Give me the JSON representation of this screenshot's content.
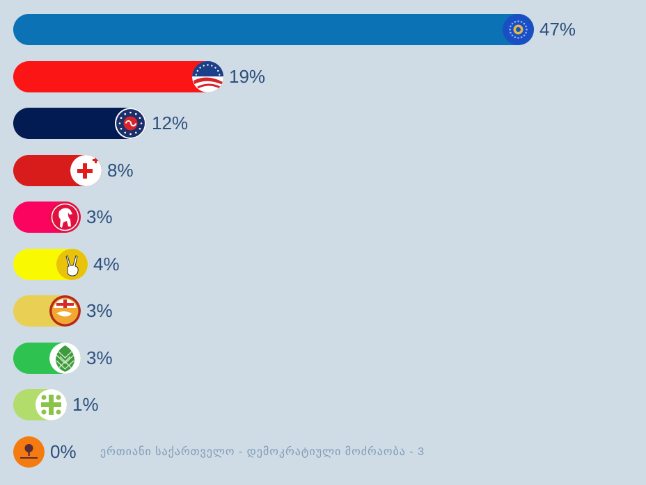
{
  "chart_data": {
    "type": "bar",
    "orientation": "horizontal",
    "title": "",
    "xlabel": "",
    "ylabel": "",
    "xlim": [
      0,
      47
    ],
    "grid": false,
    "series": [
      {
        "name": "party-1",
        "value": 47,
        "label": "47%",
        "color": "#0a72b5",
        "icon": "sunburst-emblem-icon"
      },
      {
        "name": "party-2",
        "value": 19,
        "label": "19%",
        "color": "#fb1515",
        "icon": "stars-flag-emblem-icon"
      },
      {
        "name": "party-3",
        "value": 12,
        "label": "12%",
        "color": "#021b52",
        "icon": "link-stars-emblem-icon"
      },
      {
        "name": "party-4",
        "value": 8,
        "label": "8%",
        "color": "#d81c1c",
        "icon": "red-cross-icon"
      },
      {
        "name": "party-5",
        "value": 3,
        "label": "3%",
        "color": "#fb0460",
        "icon": "horse-emblem-icon"
      },
      {
        "name": "party-6",
        "value": 4,
        "label": "4%",
        "color": "#f9f901",
        "icon": "victory-hand-icon"
      },
      {
        "name": "party-7",
        "value": 3,
        "label": "3%",
        "color": "#e9cf54",
        "icon": "flag-map-emblem-icon"
      },
      {
        "name": "party-8",
        "value": 3,
        "label": "3%",
        "color": "#2ec251",
        "icon": "pinecone-icon"
      },
      {
        "name": "party-9",
        "value": 1,
        "label": "1%",
        "color": "#b2dd6c",
        "icon": "green-cross-icon"
      },
      {
        "name": "party-10",
        "value": 0,
        "label": "0%",
        "color": "#f47b0f",
        "icon": "tree-emblem-icon",
        "note": "ერთიანი საქართველო - დემოკრატიული მოძრაობა - 3"
      }
    ]
  }
}
